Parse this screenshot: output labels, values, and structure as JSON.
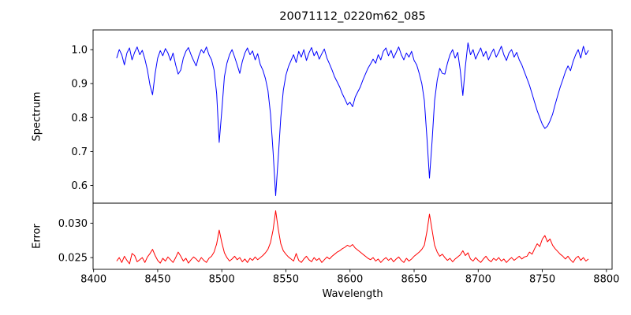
{
  "figure": {
    "background": "#ffffff",
    "axes_color": "#000000"
  },
  "chart_data": {
    "type": "line",
    "title": "20071112_0220m62_085",
    "xlabel": "Wavelength",
    "grid": false,
    "legend": "none",
    "xlim": [
      8399.6,
      8804.4
    ],
    "xticks": [
      "8400",
      "8450",
      "8500",
      "8550",
      "8600",
      "8650",
      "8700",
      "8750",
      "8800"
    ],
    "x": [
      8418,
      8420,
      8422,
      8424,
      8426,
      8428,
      8430,
      8432,
      8434,
      8436,
      8438,
      8440,
      8442,
      8444,
      8446,
      8448,
      8450,
      8452,
      8454,
      8456,
      8458,
      8460,
      8462,
      8464,
      8466,
      8468,
      8470,
      8472,
      8474,
      8476,
      8478,
      8480,
      8482,
      8484,
      8486,
      8488,
      8490,
      8492,
      8494,
      8496,
      8498,
      8500,
      8502,
      8504,
      8506,
      8508,
      8510,
      8512,
      8514,
      8516,
      8518,
      8520,
      8522,
      8524,
      8526,
      8528,
      8530,
      8532,
      8534,
      8536,
      8538,
      8540,
      8542,
      8544,
      8546,
      8548,
      8550,
      8552,
      8554,
      8556,
      8558,
      8560,
      8562,
      8564,
      8566,
      8568,
      8570,
      8572,
      8574,
      8576,
      8578,
      8580,
      8582,
      8584,
      8586,
      8588,
      8590,
      8592,
      8594,
      8596,
      8598,
      8600,
      8602,
      8604,
      8606,
      8608,
      8610,
      8612,
      8614,
      8616,
      8618,
      8620,
      8622,
      8624,
      8626,
      8628,
      8630,
      8632,
      8634,
      8636,
      8638,
      8640,
      8642,
      8644,
      8646,
      8648,
      8650,
      8652,
      8654,
      8656,
      8658,
      8660,
      8662,
      8664,
      8666,
      8668,
      8670,
      8672,
      8674,
      8676,
      8678,
      8680,
      8682,
      8684,
      8686,
      8688,
      8690,
      8692,
      8694,
      8696,
      8698,
      8700,
      8702,
      8704,
      8706,
      8708,
      8710,
      8712,
      8714,
      8716,
      8718,
      8720,
      8722,
      8724,
      8726,
      8728,
      8730,
      8732,
      8734,
      8736,
      8738,
      8740,
      8742,
      8744,
      8746,
      8748,
      8750,
      8752,
      8754,
      8756,
      8758,
      8760,
      8762,
      8764,
      8766,
      8768,
      8770,
      8772,
      8774,
      8776,
      8778,
      8780,
      8782,
      8784,
      8786
    ],
    "panels": [
      {
        "ylabel": "Spectrum",
        "ylim": [
          0.548,
          1.058
        ],
        "yticks": [
          "0.6",
          "0.7",
          "0.8",
          "0.9",
          "1.0"
        ],
        "series": [
          {
            "name": "spectrum",
            "color": "#0000ff",
            "values": [
              0.975,
              1.0,
              0.985,
              0.955,
              0.99,
              1.005,
              0.97,
              0.992,
              1.008,
              0.985,
              0.998,
              0.972,
              0.94,
              0.895,
              0.867,
              0.93,
              0.975,
              0.997,
              0.982,
              1.003,
              0.99,
              0.968,
              0.99,
              0.955,
              0.928,
              0.94,
              0.975,
              0.995,
              1.006,
              0.985,
              0.968,
              0.952,
              0.98,
              1.0,
              0.99,
              1.008,
              0.985,
              0.97,
              0.94,
              0.87,
              0.727,
              0.82,
              0.92,
              0.96,
              0.985,
              1.0,
              0.978,
              0.955,
              0.93,
              0.965,
              0.99,
              1.005,
              0.985,
              0.996,
              0.97,
              0.988,
              0.956,
              0.94,
              0.915,
              0.88,
              0.81,
              0.7,
              0.57,
              0.68,
              0.8,
              0.88,
              0.925,
              0.95,
              0.968,
              0.985,
              0.962,
              0.995,
              0.978,
              1.0,
              0.968,
              0.99,
              1.006,
              0.982,
              0.995,
              0.972,
              0.988,
              1.002,
              0.975,
              0.958,
              0.94,
              0.92,
              0.905,
              0.89,
              0.87,
              0.855,
              0.838,
              0.845,
              0.832,
              0.86,
              0.875,
              0.89,
              0.91,
              0.928,
              0.945,
              0.958,
              0.972,
              0.96,
              0.985,
              0.97,
              0.995,
              1.005,
              0.982,
              0.998,
              0.975,
              0.992,
              1.008,
              0.985,
              0.97,
              0.99,
              0.978,
              0.995,
              0.968,
              0.955,
              0.93,
              0.9,
              0.85,
              0.74,
              0.622,
              0.73,
              0.85,
              0.91,
              0.945,
              0.93,
              0.928,
              0.96,
              0.985,
              1.0,
              0.975,
              0.992,
              0.94,
              0.865,
              0.95,
              1.02,
              0.985,
              1.0,
              0.972,
              0.99,
              1.005,
              0.98,
              0.995,
              0.97,
              0.988,
              1.002,
              0.978,
              0.992,
              1.01,
              0.985,
              0.968,
              0.99,
              1.0,
              0.978,
              0.992,
              0.97,
              0.955,
              0.935,
              0.915,
              0.895,
              0.87,
              0.845,
              0.82,
              0.8,
              0.78,
              0.768,
              0.775,
              0.79,
              0.81,
              0.838,
              0.865,
              0.89,
              0.912,
              0.935,
              0.952,
              0.938,
              0.965,
              0.985,
              1.0,
              0.975,
              1.01,
              0.985,
              0.998
            ]
          }
        ],
        "features": {
          "absorption_lines": [
            {
              "center": 8446,
              "min_value": 0.87
            },
            {
              "center": 8498,
              "min_value": 0.73
            },
            {
              "center": 8542,
              "min_value": 0.57
            },
            {
              "center": 8598,
              "min_value": 0.83
            },
            {
              "center": 8662,
              "min_value": 0.62
            },
            {
              "center": 8688,
              "min_value": 0.86
            },
            {
              "center": 8752,
              "min_value": 0.77
            }
          ],
          "continuum_level": 1.0
        }
      },
      {
        "ylabel": "Error",
        "ylim": [
          0.0233,
          0.0329
        ],
        "yticks": [
          "0.025",
          "0.030"
        ],
        "series": [
          {
            "name": "error",
            "color": "#ff0000",
            "values": [
              0.0245,
              0.025,
              0.0243,
              0.0252,
              0.0246,
              0.0241,
              0.0256,
              0.0253,
              0.0244,
              0.0247,
              0.025,
              0.0243,
              0.0251,
              0.0256,
              0.0262,
              0.0253,
              0.0246,
              0.0242,
              0.0249,
              0.0245,
              0.0251,
              0.0247,
              0.0243,
              0.025,
              0.0258,
              0.0252,
              0.0245,
              0.0249,
              0.0242,
              0.0247,
              0.0251,
              0.0248,
              0.0244,
              0.025,
              0.0246,
              0.0243,
              0.0249,
              0.0252,
              0.0258,
              0.027,
              0.029,
              0.0272,
              0.0257,
              0.025,
              0.0245,
              0.0248,
              0.0252,
              0.0247,
              0.025,
              0.0244,
              0.0248,
              0.0243,
              0.0249,
              0.0246,
              0.0251,
              0.0247,
              0.025,
              0.0253,
              0.0257,
              0.0262,
              0.0272,
              0.029,
              0.0318,
              0.0292,
              0.027,
              0.026,
              0.0255,
              0.0251,
              0.0248,
              0.0245,
              0.0256,
              0.0246,
              0.0243,
              0.0248,
              0.0252,
              0.0247,
              0.0244,
              0.025,
              0.0246,
              0.0249,
              0.0243,
              0.0247,
              0.0251,
              0.0248,
              0.0252,
              0.0255,
              0.0258,
              0.026,
              0.0263,
              0.0265,
              0.0268,
              0.0266,
              0.0269,
              0.0264,
              0.0261,
              0.0258,
              0.0255,
              0.0252,
              0.0249,
              0.0247,
              0.025,
              0.0245,
              0.0248,
              0.0243,
              0.0247,
              0.025,
              0.0246,
              0.0249,
              0.0244,
              0.0248,
              0.0251,
              0.0246,
              0.0243,
              0.0249,
              0.0245,
              0.0248,
              0.0252,
              0.0255,
              0.0258,
              0.0262,
              0.0268,
              0.0288,
              0.0313,
              0.029,
              0.0268,
              0.0258,
              0.0252,
              0.0255,
              0.025,
              0.0246,
              0.0249,
              0.0244,
              0.0248,
              0.0251,
              0.0254,
              0.026,
              0.0253,
              0.0257,
              0.0248,
              0.0245,
              0.025,
              0.0246,
              0.0243,
              0.0248,
              0.0252,
              0.0247,
              0.0244,
              0.0249,
              0.0246,
              0.025,
              0.0245,
              0.0248,
              0.0243,
              0.0247,
              0.025,
              0.0246,
              0.0249,
              0.0252,
              0.0248,
              0.0251,
              0.0252,
              0.0258,
              0.0255,
              0.0263,
              0.027,
              0.0266,
              0.0277,
              0.0282,
              0.0273,
              0.0277,
              0.0268,
              0.0263,
              0.0259,
              0.0255,
              0.0252,
              0.0248,
              0.0252,
              0.0247,
              0.0243,
              0.0249,
              0.0252,
              0.0246,
              0.025,
              0.0245,
              0.0248
            ]
          }
        ],
        "features": {
          "baseline_level": 0.0248,
          "peaks": [
            {
              "center": 8498,
              "max_value": 0.029
            },
            {
              "center": 8542,
              "max_value": 0.0318
            },
            {
              "center": 8662,
              "max_value": 0.0313
            },
            {
              "center": 8752,
              "max_value": 0.0282
            }
          ]
        }
      }
    ]
  }
}
